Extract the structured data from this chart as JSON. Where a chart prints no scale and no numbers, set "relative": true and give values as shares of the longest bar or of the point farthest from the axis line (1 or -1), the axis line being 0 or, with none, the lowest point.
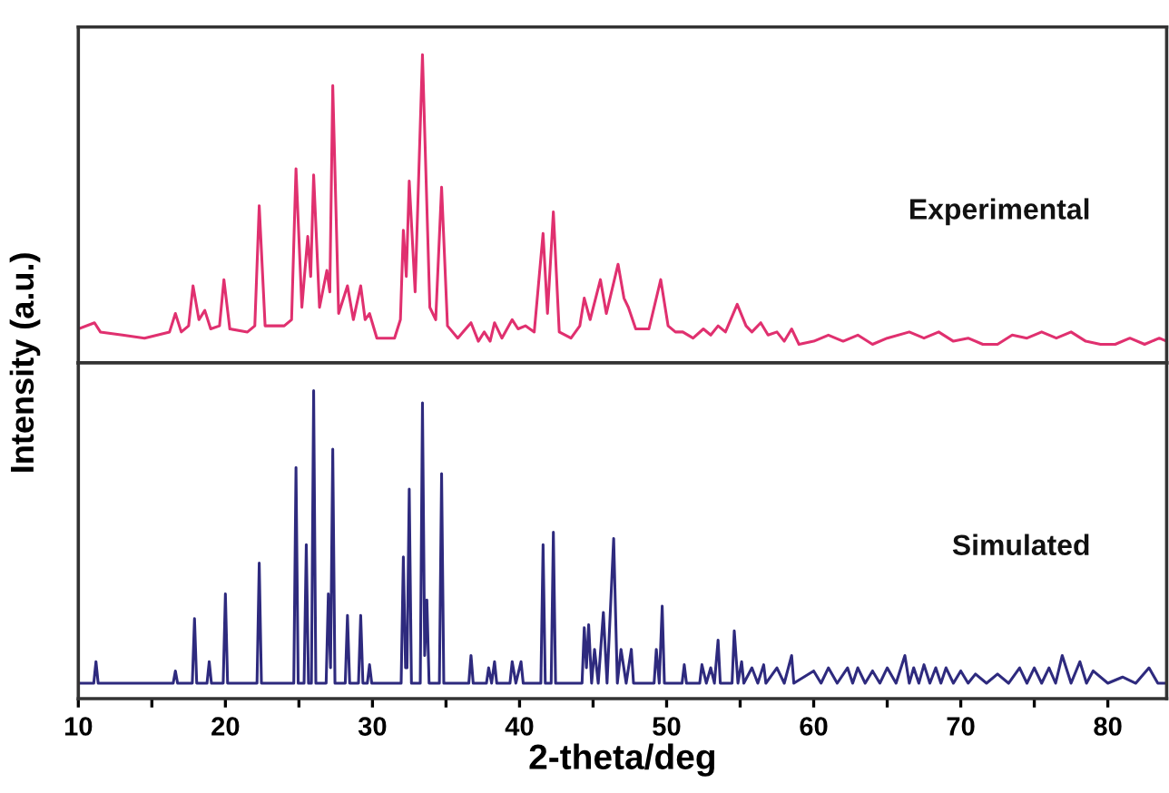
{
  "chart_data": [
    {
      "type": "line",
      "relative": true,
      "ylabel": "Intensity (a.u.)",
      "xlim": [
        10,
        84
      ],
      "tick_labels": false,
      "grid": false,
      "legend": false,
      "series": [
        {
          "name": "Experimental",
          "color": "#e0306f",
          "x": [
            10,
            11.1,
            11.5,
            13,
            14.5,
            16.2,
            16.6,
            17.0,
            17.5,
            17.8,
            18.2,
            18.6,
            19.0,
            19.6,
            19.9,
            20.3,
            21.5,
            22.0,
            22.3,
            22.7,
            24.0,
            24.5,
            24.8,
            25.2,
            25.6,
            25.8,
            26.0,
            26.4,
            26.9,
            27.1,
            27.3,
            27.7,
            28.3,
            28.7,
            29.2,
            29.5,
            29.8,
            30.3,
            31.5,
            31.9,
            32.1,
            32.3,
            32.5,
            32.9,
            33.4,
            33.9,
            34.3,
            34.7,
            35.1,
            35.8,
            36.7,
            37.2,
            37.6,
            38.0,
            38.3,
            38.8,
            39.5,
            39.9,
            40.4,
            41.0,
            41.6,
            41.9,
            42.3,
            42.7,
            43.5,
            44.1,
            44.4,
            44.8,
            45.5,
            45.9,
            46.7,
            47.1,
            47.4,
            47.9,
            48.8,
            49.6,
            50.1,
            50.6,
            51.1,
            51.8,
            52.5,
            53.0,
            53.5,
            54.0,
            54.8,
            55.4,
            55.8,
            56.4,
            56.9,
            57.5,
            58.0,
            58.5,
            59.0,
            60,
            61,
            62,
            63,
            64,
            65,
            66.5,
            67.5,
            68.5,
            69.5,
            70.5,
            71.5,
            72.5,
            73.5,
            74.5,
            75.5,
            76.5,
            77.5,
            78.5,
            79.5,
            80.5,
            81.5,
            82.5,
            83.5,
            84
          ],
          "values": [
            0.11,
            0.13,
            0.1,
            0.09,
            0.08,
            0.1,
            0.16,
            0.1,
            0.12,
            0.25,
            0.14,
            0.17,
            0.11,
            0.12,
            0.27,
            0.11,
            0.1,
            0.12,
            0.51,
            0.12,
            0.12,
            0.14,
            0.63,
            0.18,
            0.41,
            0.28,
            0.61,
            0.18,
            0.3,
            0.23,
            0.9,
            0.16,
            0.25,
            0.14,
            0.25,
            0.14,
            0.16,
            0.08,
            0.08,
            0.14,
            0.43,
            0.28,
            0.59,
            0.23,
            1.0,
            0.18,
            0.14,
            0.57,
            0.12,
            0.08,
            0.13,
            0.07,
            0.1,
            0.07,
            0.13,
            0.08,
            0.14,
            0.11,
            0.12,
            0.1,
            0.42,
            0.16,
            0.49,
            0.1,
            0.08,
            0.12,
            0.21,
            0.14,
            0.27,
            0.16,
            0.32,
            0.21,
            0.18,
            0.11,
            0.11,
            0.27,
            0.12,
            0.1,
            0.1,
            0.08,
            0.11,
            0.09,
            0.12,
            0.1,
            0.19,
            0.12,
            0.1,
            0.13,
            0.09,
            0.1,
            0.07,
            0.11,
            0.06,
            0.07,
            0.09,
            0.07,
            0.09,
            0.06,
            0.08,
            0.1,
            0.08,
            0.1,
            0.07,
            0.08,
            0.06,
            0.06,
            0.09,
            0.08,
            0.1,
            0.08,
            0.1,
            0.07,
            0.06,
            0.06,
            0.08,
            0.06,
            0.08,
            0.07
          ]
        }
      ]
    },
    {
      "type": "line",
      "relative": true,
      "xlabel": "2-theta/deg",
      "xlim": [
        10,
        84
      ],
      "tick_labels": "x",
      "grid": false,
      "legend": false,
      "xticks": [
        10,
        {
          "value": 15,
          "label": null
        },
        20,
        {
          "value": 25,
          "label": null
        },
        30,
        {
          "value": 35,
          "label": null
        },
        40,
        {
          "value": 45,
          "label": null
        },
        50,
        {
          "value": 55,
          "label": null
        },
        60,
        {
          "value": 65,
          "label": null
        },
        70,
        {
          "value": 75,
          "label": null
        },
        80
      ],
      "series": [
        {
          "name": "Simulated",
          "color": "#2e2a7e",
          "x": [
            10,
            11.05,
            11.2,
            11.35,
            16.45,
            16.6,
            16.75,
            17.75,
            17.9,
            18.05,
            18.75,
            18.9,
            19.05,
            19.85,
            20.0,
            20.15,
            22.15,
            22.3,
            22.45,
            24.65,
            24.8,
            24.95,
            25.35,
            25.5,
            25.65,
            25.85,
            26.0,
            26.15,
            26.85,
            27.0,
            27.15,
            27.3,
            27.45,
            28.15,
            28.3,
            28.45,
            29.05,
            29.2,
            29.35,
            29.65,
            29.8,
            29.95,
            31.95,
            32.1,
            32.25,
            32.35,
            32.5,
            32.65,
            33.25,
            33.4,
            33.55,
            33.7,
            33.85,
            34.55,
            34.7,
            34.85,
            36.55,
            36.7,
            36.85,
            37.75,
            37.9,
            38.1,
            38.3,
            38.45,
            39.35,
            39.5,
            39.75,
            40.1,
            40.25,
            41.45,
            41.6,
            41.75,
            42.15,
            42.3,
            42.45,
            44.25,
            44.4,
            44.55,
            44.7,
            44.9,
            45.1,
            45.35,
            45.7,
            45.95,
            46.4,
            46.65,
            46.9,
            47.25,
            47.6,
            47.75,
            49.15,
            49.3,
            49.5,
            49.7,
            49.85,
            51.05,
            51.2,
            51.35,
            52.25,
            52.4,
            52.7,
            53.0,
            53.25,
            53.5,
            53.65,
            54.45,
            54.6,
            54.85,
            55.1,
            55.25,
            55.8,
            56.2,
            56.6,
            56.75,
            57.5,
            58.0,
            58.5,
            58.65,
            60.0,
            60.5,
            61.0,
            61.6,
            62.3,
            62.65,
            63.0,
            63.5,
            64.0,
            64.5,
            65.0,
            65.6,
            66.2,
            66.5,
            66.8,
            67.15,
            67.5,
            67.9,
            68.3,
            68.65,
            69.0,
            69.5,
            70.0,
            70.5,
            71.0,
            71.75,
            72.5,
            73.25,
            74.0,
            74.5,
            75.0,
            75.5,
            76.0,
            76.45,
            76.9,
            77.5,
            78.1,
            78.55,
            79.0,
            80.0,
            81.0,
            81.9,
            82.8,
            83.4,
            84
          ],
          "values": [
            0.05,
            0.05,
            0.12,
            0.05,
            0.05,
            0.09,
            0.05,
            0.05,
            0.26,
            0.05,
            0.05,
            0.12,
            0.05,
            0.05,
            0.34,
            0.05,
            0.05,
            0.44,
            0.05,
            0.05,
            0.75,
            0.05,
            0.05,
            0.5,
            0.05,
            0.05,
            1.0,
            0.05,
            0.05,
            0.34,
            0.1,
            0.81,
            0.05,
            0.05,
            0.27,
            0.05,
            0.05,
            0.27,
            0.05,
            0.05,
            0.11,
            0.05,
            0.05,
            0.46,
            0.1,
            0.1,
            0.68,
            0.05,
            0.05,
            0.96,
            0.14,
            0.32,
            0.05,
            0.05,
            0.73,
            0.05,
            0.05,
            0.14,
            0.05,
            0.05,
            0.1,
            0.05,
            0.12,
            0.05,
            0.05,
            0.12,
            0.05,
            0.12,
            0.05,
            0.05,
            0.5,
            0.05,
            0.05,
            0.54,
            0.05,
            0.05,
            0.23,
            0.1,
            0.24,
            0.05,
            0.16,
            0.05,
            0.28,
            0.05,
            0.52,
            0.05,
            0.16,
            0.05,
            0.16,
            0.05,
            0.05,
            0.16,
            0.05,
            0.3,
            0.05,
            0.05,
            0.11,
            0.05,
            0.05,
            0.11,
            0.05,
            0.1,
            0.05,
            0.19,
            0.05,
            0.05,
            0.22,
            0.05,
            0.12,
            0.05,
            0.1,
            0.05,
            0.11,
            0.05,
            0.1,
            0.05,
            0.14,
            0.05,
            0.09,
            0.05,
            0.1,
            0.05,
            0.1,
            0.05,
            0.1,
            0.05,
            0.09,
            0.05,
            0.1,
            0.05,
            0.14,
            0.05,
            0.1,
            0.05,
            0.11,
            0.05,
            0.1,
            0.05,
            0.1,
            0.05,
            0.09,
            0.05,
            0.08,
            0.05,
            0.08,
            0.05,
            0.1,
            0.05,
            0.1,
            0.05,
            0.1,
            0.05,
            0.14,
            0.05,
            0.12,
            0.05,
            0.09,
            0.05,
            0.07,
            0.05,
            0.1,
            0.05,
            0.05
          ]
        }
      ]
    }
  ]
}
